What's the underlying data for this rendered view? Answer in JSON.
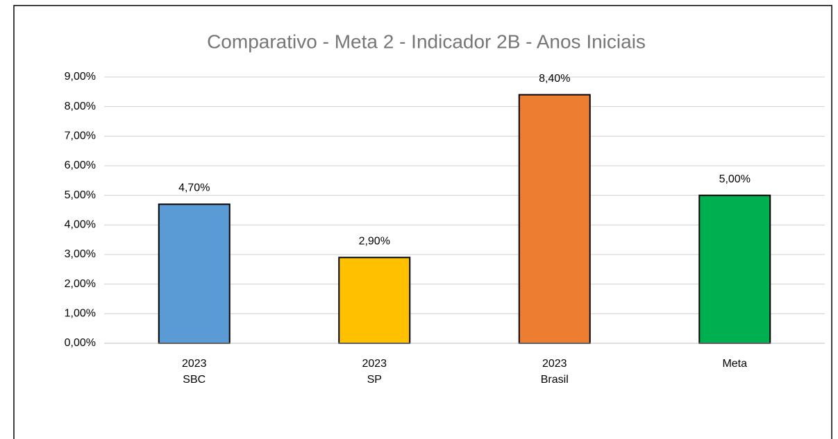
{
  "chart_data": {
    "type": "bar",
    "title": "Comparativo - Meta 2 - Indicador 2B - Anos Iniciais",
    "categories": [
      [
        "2023",
        "SBC"
      ],
      [
        "2023",
        "SP"
      ],
      [
        "2023",
        "Brasil"
      ],
      [
        "Meta"
      ]
    ],
    "values": [
      4.7,
      2.9,
      8.4,
      5.0
    ],
    "value_labels": [
      "4,70%",
      "2,90%",
      "8,40%",
      "5,00%"
    ],
    "colors": [
      "#5b9bd5",
      "#ffc000",
      "#ed7d31",
      "#00b050"
    ],
    "ylim": [
      0,
      9
    ],
    "yticks": [
      {
        "value": 0,
        "label": "0,00%"
      },
      {
        "value": 1,
        "label": "1,00%"
      },
      {
        "value": 2,
        "label": "2,00%"
      },
      {
        "value": 3,
        "label": "3,00%"
      },
      {
        "value": 4,
        "label": "4,00%"
      },
      {
        "value": 5,
        "label": "5,00%"
      },
      {
        "value": 6,
        "label": "6,00%"
      },
      {
        "value": 7,
        "label": "7,00%"
      },
      {
        "value": 8,
        "label": "8,00%"
      },
      {
        "value": 9,
        "label": "9,00%"
      }
    ],
    "grid": true
  }
}
